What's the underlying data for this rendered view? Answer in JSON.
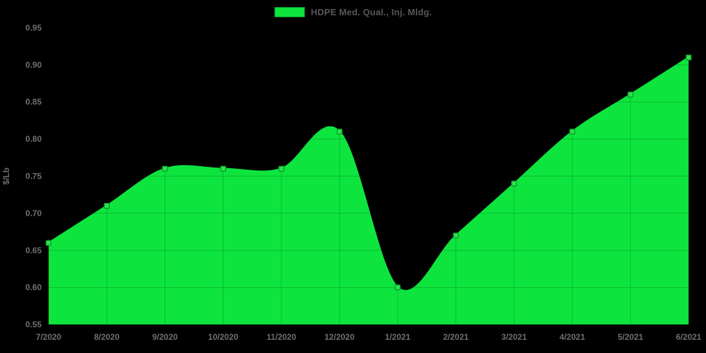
{
  "legend": {
    "label": "HDPE Med. Qual., Inj. Mldg."
  },
  "colors": {
    "background": "#000000",
    "series_green": "#0de53e",
    "marker_fill": "#2fe24f",
    "marker_border": "#0c9c2f",
    "grid_overlay": "rgba(0,0,0,0.15)",
    "tick_text": "#6f6f6f",
    "legend_text": "#565656"
  },
  "chart_data": {
    "type": "area",
    "curve": "smooth",
    "title": "",
    "xlabel": "",
    "ylabel": "$/Lb",
    "categories": [
      "7/2020",
      "8/2020",
      "9/2020",
      "10/2020",
      "11/2020",
      "12/2020",
      "1/2021",
      "2/2021",
      "3/2021",
      "4/2021",
      "5/2021",
      "6/2021"
    ],
    "series": [
      {
        "name": "HDPE Med. Qual., Inj. Mldg.",
        "values": [
          0.66,
          0.71,
          0.76,
          0.76,
          0.76,
          0.81,
          0.6,
          0.67,
          0.74,
          0.81,
          0.86,
          0.91
        ]
      }
    ],
    "ylim": [
      0.55,
      0.95
    ],
    "ytick_step": 0.05,
    "ytick_labels": [
      "0.55",
      "0.60",
      "0.65",
      "0.70",
      "0.75",
      "0.80",
      "0.85",
      "0.90",
      "0.95"
    ],
    "grid": true,
    "legend_position": "top-center",
    "marker": "square"
  }
}
